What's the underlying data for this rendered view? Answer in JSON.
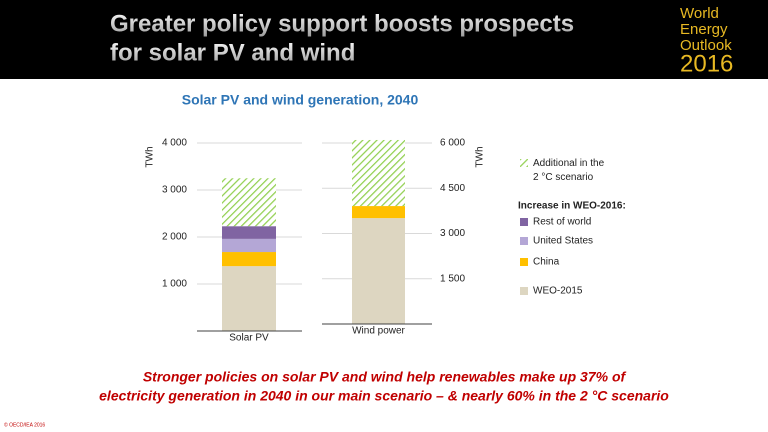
{
  "header": {
    "title_lines": [
      "Greater policy support boosts prospects",
      "for solar PV and wind"
    ],
    "logo_lines": [
      "World",
      "Energy",
      "Outlook",
      "2016"
    ]
  },
  "chart_title": "Solar PV and wind generation, 2040",
  "chart_data": [
    {
      "type": "bar",
      "stacked": true,
      "y_label": "TWh",
      "categories": [
        "Solar PV"
      ],
      "ylim": [
        0,
        4000
      ],
      "yticks": [
        {
          "value": 1000,
          "label": "1 000"
        },
        {
          "value": 2000,
          "label": "2 000"
        },
        {
          "value": 3000,
          "label": "3 000"
        },
        {
          "value": 4000,
          "label": "4 000"
        }
      ],
      "grid": true,
      "legend_title": "Increase in WEO-2016:",
      "series": [
        {
          "name": "WEO-2015",
          "color": "#ddd6c1",
          "values": [
            1380
          ]
        },
        {
          "name": "China",
          "color": "#ffc000",
          "values": [
            300
          ]
        },
        {
          "name": "United States",
          "color": "#b4a7d6",
          "values": [
            280
          ]
        },
        {
          "name": "Rest of world",
          "color": "#8064a2",
          "values": [
            270
          ]
        },
        {
          "name": "Additional in the 2 °C scenario",
          "color": "#92d050",
          "hatch": true,
          "values": [
            1020
          ]
        }
      ]
    },
    {
      "type": "bar",
      "stacked": true,
      "y_label": "TWh",
      "categories": [
        "Wind power"
      ],
      "ylim": [
        0,
        6000
      ],
      "yticks": [
        {
          "value": 1500,
          "label": "1 500"
        },
        {
          "value": 3000,
          "label": "3 000"
        },
        {
          "value": 4500,
          "label": "4 500"
        },
        {
          "value": 6000,
          "label": "6 000"
        }
      ],
      "grid": true,
      "series": [
        {
          "color": "#ddd6c1",
          "values": [
            3510
          ]
        },
        {
          "color": "#ffc000",
          "values": [
            400
          ]
        },
        {
          "color": "#92d050",
          "hatch": true,
          "values": [
            2190
          ]
        }
      ]
    }
  ],
  "footer": {
    "lines": [
      "Stronger policies on solar PV and wind help renewables make up 37% of",
      "electricity generation in 2040 in our main scenario – & nearly 60% in the 2 °C scenario"
    ],
    "copyright": "© OECD/IEA 2016"
  }
}
